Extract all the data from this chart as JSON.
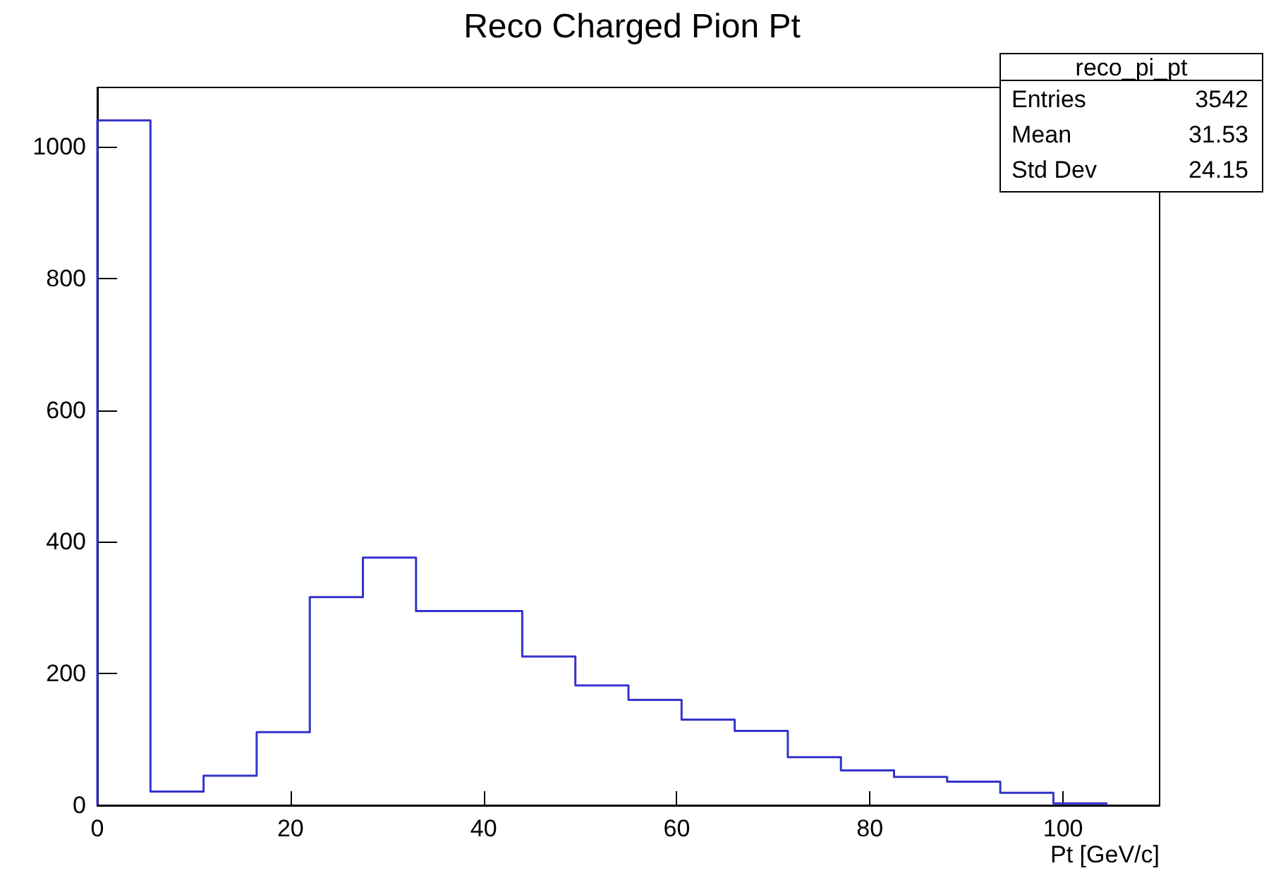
{
  "chart_data": {
    "type": "histogram",
    "title": "Reco Charged Pion Pt",
    "xlabel": "Pt [GeV/c]",
    "bins": [
      0,
      5.5,
      11,
      16.5,
      22,
      27.5,
      33,
      38.5,
      44,
      49.5,
      55,
      60.5,
      66,
      71.5,
      77,
      82.5,
      88,
      93.5,
      99,
      104.5
    ],
    "values": [
      1040,
      21,
      45,
      111,
      316,
      376,
      295,
      295,
      226,
      182,
      160,
      130,
      113,
      73,
      53,
      43,
      36,
      19,
      3
    ],
    "color": "#3333cc",
    "xlim": [
      0,
      110
    ],
    "xticks": [
      0,
      20,
      40,
      60,
      80,
      100
    ],
    "ylim": [
      0,
      1090
    ],
    "yticks": [
      0,
      200,
      400,
      600,
      800,
      1000
    ],
    "grid": false,
    "annotations": [
      "reco_pi_pt",
      "Entries",
      "3542",
      "Mean",
      "31.53",
      "Std Dev",
      "24.15"
    ]
  }
}
